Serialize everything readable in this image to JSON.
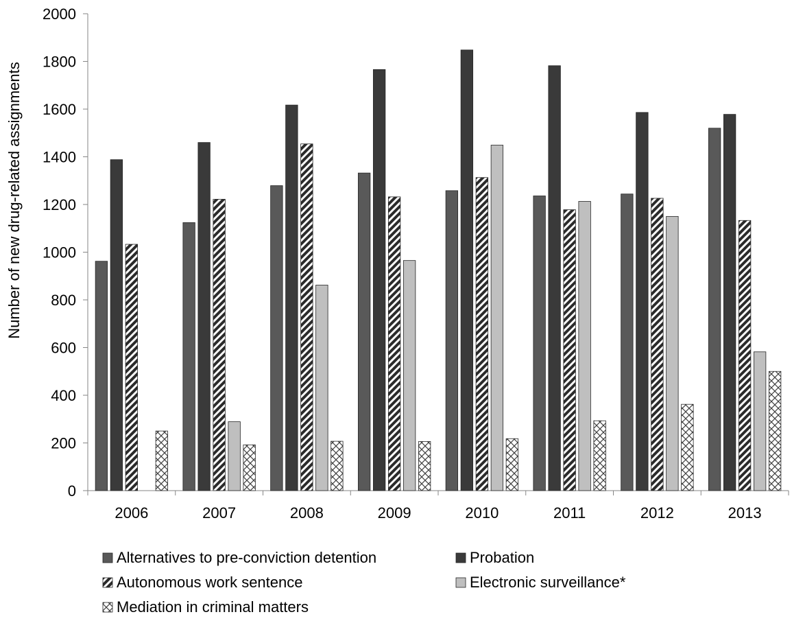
{
  "chart_data": {
    "type": "bar",
    "title": "",
    "xlabel": "",
    "ylabel": "Number of new drug-related assignments",
    "ylim": [
      0,
      2000
    ],
    "yticks": [
      0,
      200,
      400,
      600,
      800,
      1000,
      1200,
      1400,
      1600,
      1800,
      2000
    ],
    "grid": false,
    "legend_position": "bottom",
    "categories": [
      "2006",
      "2007",
      "2008",
      "2009",
      "2010",
      "2011",
      "2012",
      "2013"
    ],
    "series": [
      {
        "name": "Alternatives to pre-conviction detention",
        "color": "#595959",
        "pattern": "solid",
        "values": [
          962,
          1124,
          1279,
          1332,
          1258,
          1236,
          1244,
          1520
        ]
      },
      {
        "name": "Probation",
        "color": "#3a3a3a",
        "pattern": "solid",
        "values": [
          1388,
          1460,
          1617,
          1766,
          1848,
          1782,
          1586,
          1578
        ]
      },
      {
        "name": "Autonomous work sentence",
        "color": "#2b2b2b",
        "pattern": "diagonal-stripes",
        "values": [
          1033,
          1222,
          1454,
          1232,
          1313,
          1178,
          1226,
          1133
        ]
      },
      {
        "name": "Electronic surveillance*",
        "color": "#bfbfbf",
        "pattern": "solid",
        "values": [
          0,
          289,
          862,
          965,
          1449,
          1213,
          1150,
          582
        ]
      },
      {
        "name": "Mediation in criminal matters",
        "color": "#404040",
        "pattern": "crosshatch",
        "values": [
          250,
          192,
          207,
          206,
          218,
          293,
          362,
          500
        ]
      }
    ]
  }
}
